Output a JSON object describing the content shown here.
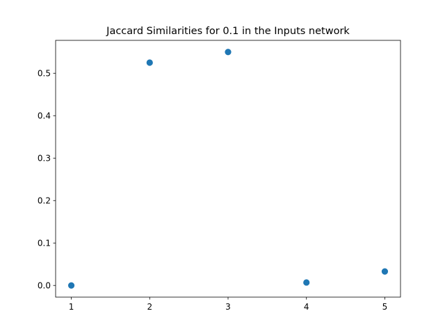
{
  "chart_data": {
    "type": "scatter",
    "title": "Jaccard Similarities for 0.1 in the Inputs network",
    "xlabel": "",
    "ylabel": "",
    "x": [
      1,
      2,
      3,
      4,
      5
    ],
    "y": [
      0.0,
      0.525,
      0.55,
      0.007,
      0.033
    ],
    "xlim": [
      0.8,
      5.2
    ],
    "ylim": [
      -0.0275,
      0.5775
    ],
    "xticks": [
      1,
      2,
      3,
      4,
      5
    ],
    "xtick_labels": [
      "1",
      "2",
      "3",
      "4",
      "5"
    ],
    "yticks": [
      0.0,
      0.1,
      0.2,
      0.3,
      0.4,
      0.5
    ],
    "ytick_labels": [
      "0.0",
      "0.1",
      "0.2",
      "0.3",
      "0.4",
      "0.5"
    ],
    "grid": false,
    "legend": "none",
    "marker_color": "#1f77b4"
  }
}
